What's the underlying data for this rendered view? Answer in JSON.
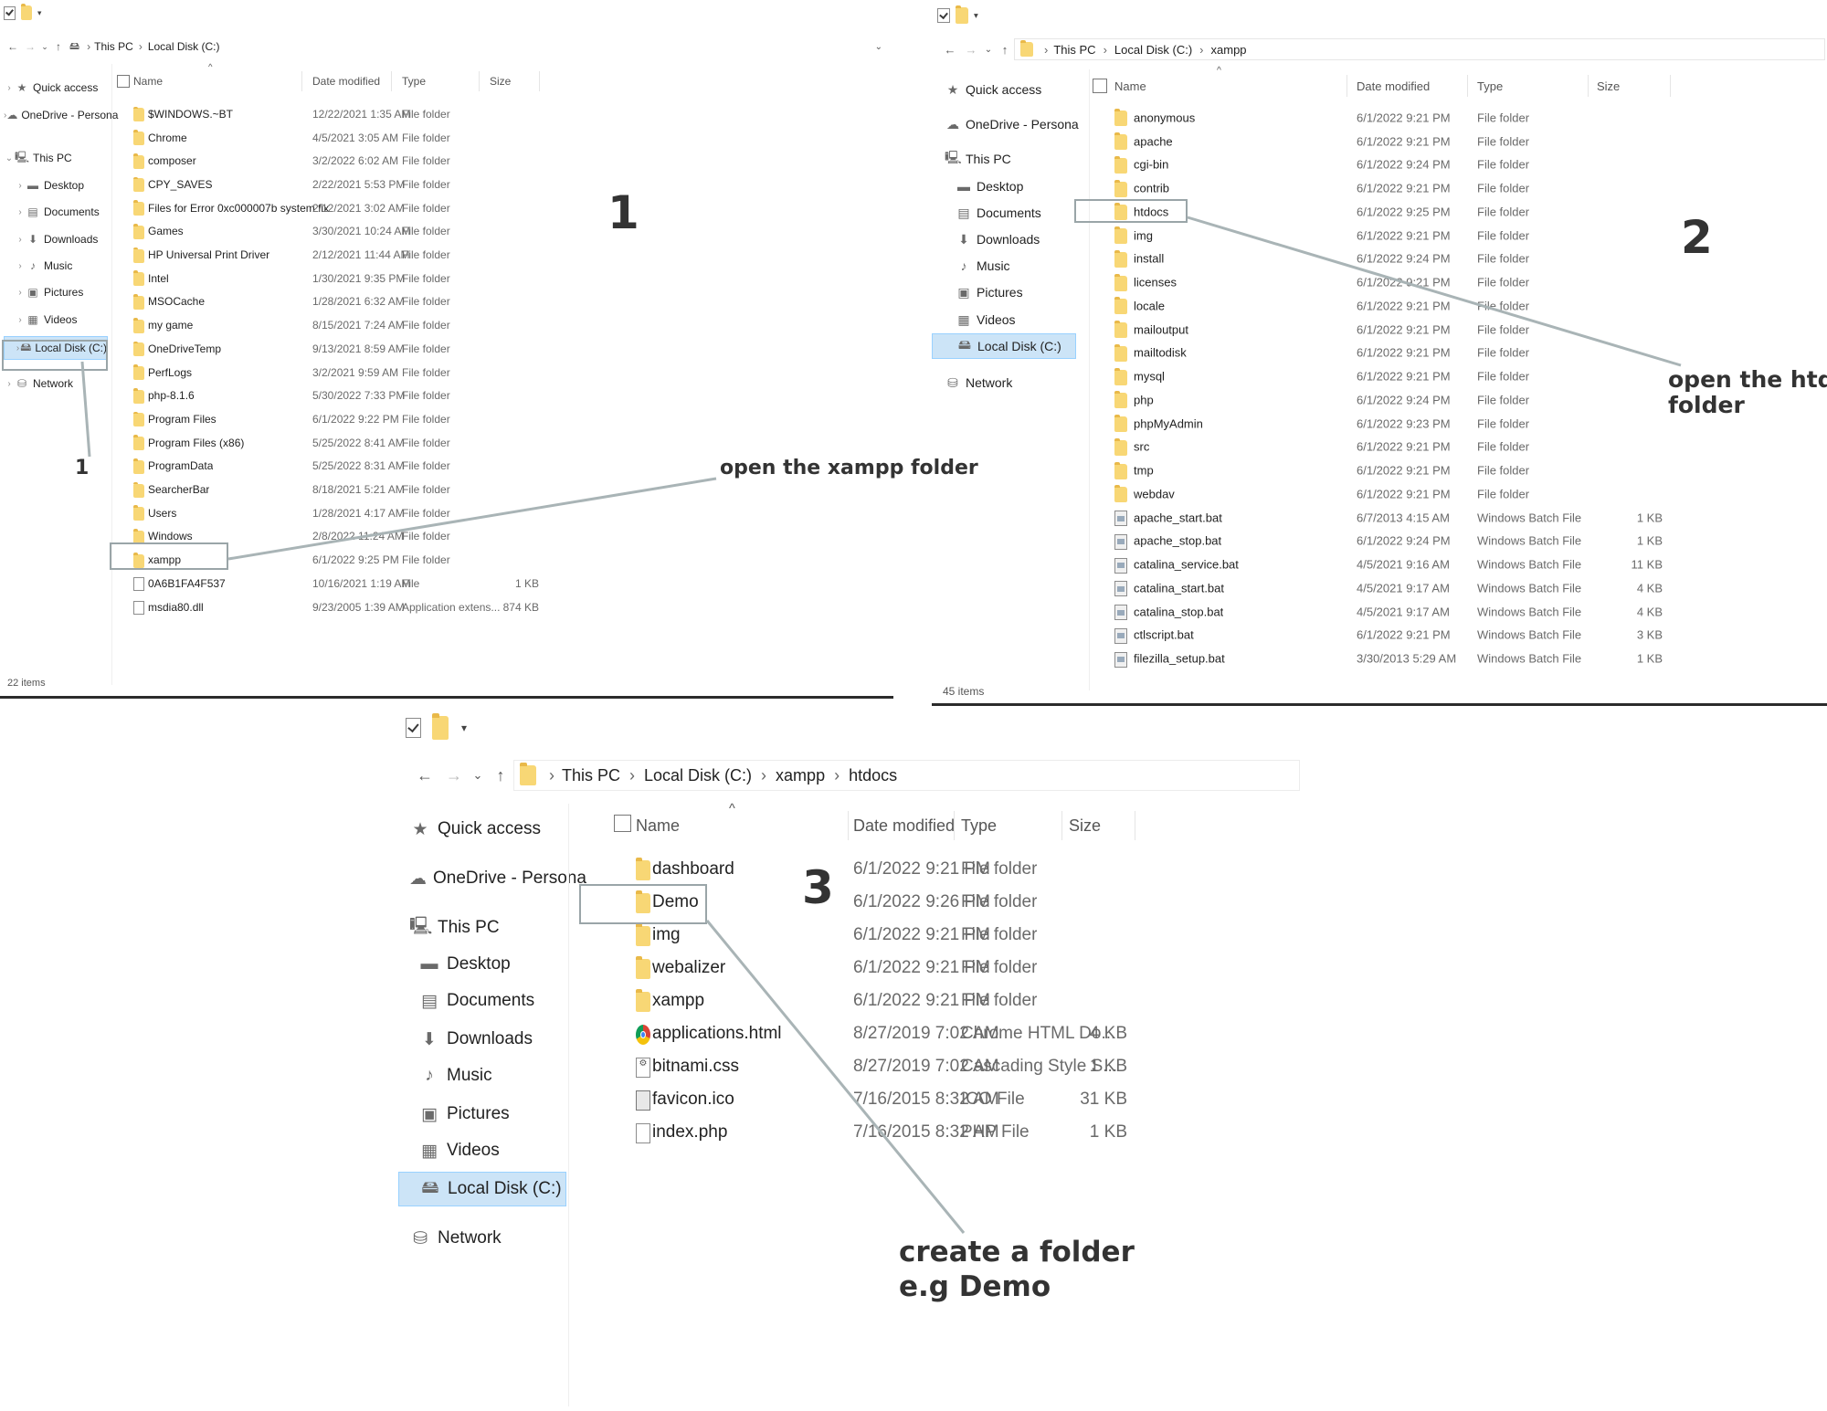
{
  "panel1": {
    "qat_icons": [
      "properties-checkbox-icon",
      "folder-icon",
      "customize-caret-icon"
    ],
    "breadcrumbs": [
      "This PC",
      "Local Disk (C:)"
    ],
    "sidebar": [
      {
        "label": "Quick access",
        "icon": "star-icon"
      },
      {
        "label": "OneDrive - Persona",
        "icon": "cloud-icon"
      },
      {
        "label": "This PC",
        "icon": "computer-icon"
      },
      {
        "label": "Desktop",
        "icon": "desktop-icon"
      },
      {
        "label": "Documents",
        "icon": "documents-icon"
      },
      {
        "label": "Downloads",
        "icon": "downloads-icon"
      },
      {
        "label": "Music",
        "icon": "music-icon"
      },
      {
        "label": "Pictures",
        "icon": "pictures-icon"
      },
      {
        "label": "Videos",
        "icon": "videos-icon"
      },
      {
        "label": "Local Disk (C:)",
        "icon": "drive-icon",
        "selected": true
      },
      {
        "label": "Network",
        "icon": "network-icon"
      }
    ],
    "columns": {
      "name": "Name",
      "date": "Date modified",
      "type": "Type",
      "size": "Size"
    },
    "rows": [
      {
        "name": "$WINDOWS.~BT",
        "date": "12/22/2021 1:35 AM",
        "type": "File folder",
        "size": "",
        "icon": "folder"
      },
      {
        "name": "Chrome",
        "date": "4/5/2021 3:05 AM",
        "type": "File folder",
        "size": "",
        "icon": "folder"
      },
      {
        "name": "composer",
        "date": "3/2/2022 6:02 AM",
        "type": "File folder",
        "size": "",
        "icon": "folder"
      },
      {
        "name": "CPY_SAVES",
        "date": "2/22/2021 5:53 PM",
        "type": "File folder",
        "size": "",
        "icon": "folder"
      },
      {
        "name": "Files for Error 0xc000007b system fix",
        "date": "2/12/2021 3:02 AM",
        "type": "File folder",
        "size": "",
        "icon": "folder"
      },
      {
        "name": "Games",
        "date": "3/30/2021 10:24 AM",
        "type": "File folder",
        "size": "",
        "icon": "folder"
      },
      {
        "name": "HP Universal Print Driver",
        "date": "2/12/2021 11:44 AM",
        "type": "File folder",
        "size": "",
        "icon": "folder"
      },
      {
        "name": "Intel",
        "date": "1/30/2021 9:35 PM",
        "type": "File folder",
        "size": "",
        "icon": "folder"
      },
      {
        "name": "MSOCache",
        "date": "1/28/2021 6:32 AM",
        "type": "File folder",
        "size": "",
        "icon": "folder"
      },
      {
        "name": "my game",
        "date": "8/15/2021 7:24 AM",
        "type": "File folder",
        "size": "",
        "icon": "folder"
      },
      {
        "name": "OneDriveTemp",
        "date": "9/13/2021 8:59 AM",
        "type": "File folder",
        "size": "",
        "icon": "folder"
      },
      {
        "name": "PerfLogs",
        "date": "3/2/2021 9:59 AM",
        "type": "File folder",
        "size": "",
        "icon": "folder"
      },
      {
        "name": "php-8.1.6",
        "date": "5/30/2022 7:33 PM",
        "type": "File folder",
        "size": "",
        "icon": "folder"
      },
      {
        "name": "Program Files",
        "date": "6/1/2022 9:22 PM",
        "type": "File folder",
        "size": "",
        "icon": "folder"
      },
      {
        "name": "Program Files (x86)",
        "date": "5/25/2022 8:41 AM",
        "type": "File folder",
        "size": "",
        "icon": "folder"
      },
      {
        "name": "ProgramData",
        "date": "5/25/2022 8:31 AM",
        "type": "File folder",
        "size": "",
        "icon": "folder"
      },
      {
        "name": "SearcherBar",
        "date": "8/18/2021 5:21 AM",
        "type": "File folder",
        "size": "",
        "icon": "folder"
      },
      {
        "name": "Users",
        "date": "1/28/2021 4:17 AM",
        "type": "File folder",
        "size": "",
        "icon": "folder"
      },
      {
        "name": "Windows",
        "date": "2/8/2022 11:24 AM",
        "type": "File folder",
        "size": "",
        "icon": "folder"
      },
      {
        "name": "xampp",
        "date": "6/1/2022 9:25 PM",
        "type": "File folder",
        "size": "",
        "icon": "folder"
      },
      {
        "name": "0A6B1FA4F537",
        "date": "10/16/2021 1:19 AM",
        "type": "File",
        "size": "1 KB",
        "icon": "file"
      },
      {
        "name": "msdia80.dll",
        "date": "9/23/2005 1:39 AM",
        "type": "Application extens...",
        "size": "874 KB",
        "icon": "file"
      }
    ],
    "status": "22 items",
    "step_number": "1",
    "sidebar_marker": "1",
    "annotation": "open the xampp folder"
  },
  "panel2": {
    "qat_icons": [
      "properties-checkbox-icon",
      "folder-icon",
      "customize-caret-icon"
    ],
    "breadcrumbs": [
      "This PC",
      "Local Disk (C:)",
      "xampp"
    ],
    "sidebar": [
      {
        "label": "Quick access",
        "icon": "star-icon"
      },
      {
        "label": "OneDrive - Persona",
        "icon": "cloud-icon"
      },
      {
        "label": "This PC",
        "icon": "computer-icon"
      },
      {
        "label": "Desktop",
        "icon": "desktop-icon"
      },
      {
        "label": "Documents",
        "icon": "documents-icon"
      },
      {
        "label": "Downloads",
        "icon": "downloads-icon"
      },
      {
        "label": "Music",
        "icon": "music-icon"
      },
      {
        "label": "Pictures",
        "icon": "pictures-icon"
      },
      {
        "label": "Videos",
        "icon": "videos-icon"
      },
      {
        "label": "Local Disk (C:)",
        "icon": "drive-icon",
        "selected": true
      },
      {
        "label": "Network",
        "icon": "network-icon"
      }
    ],
    "columns": {
      "name": "Name",
      "date": "Date modified",
      "type": "Type",
      "size": "Size"
    },
    "rows": [
      {
        "name": "anonymous",
        "date": "6/1/2022 9:21 PM",
        "type": "File folder",
        "size": "",
        "icon": "folder"
      },
      {
        "name": "apache",
        "date": "6/1/2022 9:21 PM",
        "type": "File folder",
        "size": "",
        "icon": "folder"
      },
      {
        "name": "cgi-bin",
        "date": "6/1/2022 9:24 PM",
        "type": "File folder",
        "size": "",
        "icon": "folder"
      },
      {
        "name": "contrib",
        "date": "6/1/2022 9:21 PM",
        "type": "File folder",
        "size": "",
        "icon": "folder"
      },
      {
        "name": "htdocs",
        "date": "6/1/2022 9:25 PM",
        "type": "File folder",
        "size": "",
        "icon": "folder"
      },
      {
        "name": "img",
        "date": "6/1/2022 9:21 PM",
        "type": "File folder",
        "size": "",
        "icon": "folder"
      },
      {
        "name": "install",
        "date": "6/1/2022 9:24 PM",
        "type": "File folder",
        "size": "",
        "icon": "folder"
      },
      {
        "name": "licenses",
        "date": "6/1/2022 9:21 PM",
        "type": "File folder",
        "size": "",
        "icon": "folder"
      },
      {
        "name": "locale",
        "date": "6/1/2022 9:21 PM",
        "type": "File folder",
        "size": "",
        "icon": "folder"
      },
      {
        "name": "mailoutput",
        "date": "6/1/2022 9:21 PM",
        "type": "File folder",
        "size": "",
        "icon": "folder"
      },
      {
        "name": "mailtodisk",
        "date": "6/1/2022 9:21 PM",
        "type": "File folder",
        "size": "",
        "icon": "folder"
      },
      {
        "name": "mysql",
        "date": "6/1/2022 9:21 PM",
        "type": "File folder",
        "size": "",
        "icon": "folder"
      },
      {
        "name": "php",
        "date": "6/1/2022 9:24 PM",
        "type": "File folder",
        "size": "",
        "icon": "folder"
      },
      {
        "name": "phpMyAdmin",
        "date": "6/1/2022 9:23 PM",
        "type": "File folder",
        "size": "",
        "icon": "folder"
      },
      {
        "name": "src",
        "date": "6/1/2022 9:21 PM",
        "type": "File folder",
        "size": "",
        "icon": "folder"
      },
      {
        "name": "tmp",
        "date": "6/1/2022 9:21 PM",
        "type": "File folder",
        "size": "",
        "icon": "folder"
      },
      {
        "name": "webdav",
        "date": "6/1/2022 9:21 PM",
        "type": "File folder",
        "size": "",
        "icon": "folder"
      },
      {
        "name": "apache_start.bat",
        "date": "6/7/2013 4:15 AM",
        "type": "Windows Batch File",
        "size": "1 KB",
        "icon": "bat"
      },
      {
        "name": "apache_stop.bat",
        "date": "6/1/2022 9:24 PM",
        "type": "Windows Batch File",
        "size": "1 KB",
        "icon": "bat"
      },
      {
        "name": "catalina_service.bat",
        "date": "4/5/2021 9:16 AM",
        "type": "Windows Batch File",
        "size": "11 KB",
        "icon": "bat"
      },
      {
        "name": "catalina_start.bat",
        "date": "4/5/2021 9:17 AM",
        "type": "Windows Batch File",
        "size": "4 KB",
        "icon": "bat"
      },
      {
        "name": "catalina_stop.bat",
        "date": "4/5/2021 9:17 AM",
        "type": "Windows Batch File",
        "size": "4 KB",
        "icon": "bat"
      },
      {
        "name": "ctlscript.bat",
        "date": "6/1/2022 9:21 PM",
        "type": "Windows Batch File",
        "size": "3 KB",
        "icon": "bat"
      },
      {
        "name": "filezilla_setup.bat",
        "date": "3/30/2013 5:29 AM",
        "type": "Windows Batch File",
        "size": "1 KB",
        "icon": "bat"
      }
    ],
    "status": "45 items",
    "step_number": "2",
    "annotation_line1": "open the htdoc",
    "annotation_line2": "folder"
  },
  "panel3": {
    "qat_icons": [
      "properties-checkbox-icon",
      "folder-icon",
      "customize-caret-icon"
    ],
    "breadcrumbs": [
      "This PC",
      "Local Disk (C:)",
      "xampp",
      "htdocs"
    ],
    "sidebar": [
      {
        "label": "Quick access",
        "icon": "star-icon"
      },
      {
        "label": "OneDrive - Persona",
        "icon": "cloud-icon"
      },
      {
        "label": "This PC",
        "icon": "computer-icon"
      },
      {
        "label": "Desktop",
        "icon": "desktop-icon"
      },
      {
        "label": "Documents",
        "icon": "documents-icon"
      },
      {
        "label": "Downloads",
        "icon": "downloads-icon"
      },
      {
        "label": "Music",
        "icon": "music-icon"
      },
      {
        "label": "Pictures",
        "icon": "pictures-icon"
      },
      {
        "label": "Videos",
        "icon": "videos-icon"
      },
      {
        "label": "Local Disk (C:)",
        "icon": "drive-icon",
        "selected": true
      },
      {
        "label": "Network",
        "icon": "network-icon"
      }
    ],
    "columns": {
      "name": "Name",
      "date": "Date modified",
      "type": "Type",
      "size": "Size"
    },
    "rows": [
      {
        "name": "dashboard",
        "date": "6/1/2022 9:21 PM",
        "type": "File folder",
        "size": "",
        "icon": "folder"
      },
      {
        "name": "Demo",
        "date": "6/1/2022 9:26 PM",
        "type": "File folder",
        "size": "",
        "icon": "folder"
      },
      {
        "name": "img",
        "date": "6/1/2022 9:21 PM",
        "type": "File folder",
        "size": "",
        "icon": "folder"
      },
      {
        "name": "webalizer",
        "date": "6/1/2022 9:21 PM",
        "type": "File folder",
        "size": "",
        "icon": "folder"
      },
      {
        "name": "xampp",
        "date": "6/1/2022 9:21 PM",
        "type": "File folder",
        "size": "",
        "icon": "folder"
      },
      {
        "name": "applications.html",
        "date": "8/27/2019 7:02 AM",
        "type": "Chrome HTML Do...",
        "size": "4 KB",
        "icon": "chrome"
      },
      {
        "name": "bitnami.css",
        "date": "8/27/2019 7:02 AM",
        "type": "Cascading Style S...",
        "size": "1 KB",
        "icon": "css"
      },
      {
        "name": "favicon.ico",
        "date": "7/16/2015 8:32 AM",
        "type": "ICO File",
        "size": "31 KB",
        "icon": "ico"
      },
      {
        "name": "index.php",
        "date": "7/16/2015 8:32 AM",
        "type": "PHP File",
        "size": "1 KB",
        "icon": "file"
      }
    ],
    "step_number": "3",
    "annotation_line1": "create a folder",
    "annotation_line2": "e.g Demo"
  },
  "colors": {
    "folder": "#f8d775",
    "selection": "#cce4f7",
    "highlight_box": "#9aa5a8",
    "annotation_text": "#333333"
  }
}
